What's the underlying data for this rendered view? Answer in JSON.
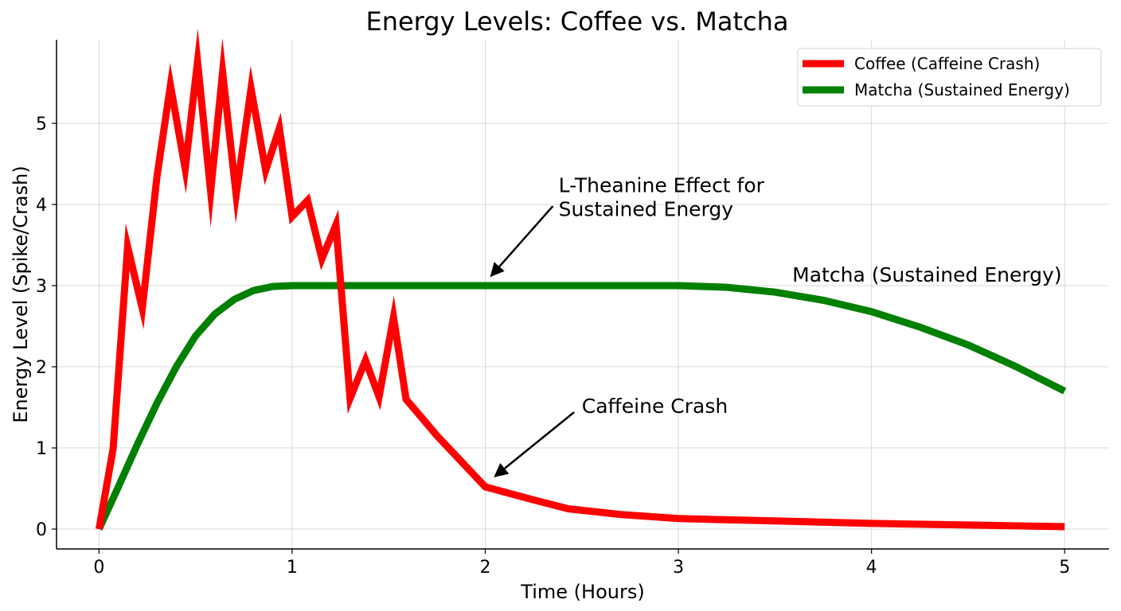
{
  "chart_data": {
    "type": "line",
    "title": "Energy Levels: Coffee vs. Matcha",
    "xlabel": "Time (Hours)",
    "ylabel": "Energy Level (Spike/Crash)",
    "xlim": [
      -0.22,
      5.23
    ],
    "ylim": [
      -0.245,
      6.03
    ],
    "xticks": [
      0,
      1,
      2,
      3,
      4,
      5
    ],
    "yticks": [
      0,
      1,
      2,
      3,
      4,
      5
    ],
    "grid": true,
    "legend_placement": "top-right",
    "series": [
      {
        "name": "Coffee (Caffeine Crash)",
        "color": "#ff0000",
        "x": [
          0,
          0.073,
          0.148,
          0.224,
          0.3,
          0.37,
          0.446,
          0.51,
          0.578,
          0.64,
          0.71,
          0.787,
          0.863,
          0.934,
          1.0,
          1.08,
          1.154,
          1.227,
          1.3,
          1.38,
          1.45,
          1.525,
          1.59,
          1.75,
          2.0,
          2.25,
          2.43,
          2.7,
          3.0,
          3.5,
          4.0,
          4.5,
          5.0
        ],
        "y": [
          0,
          0.99,
          3.48,
          2.72,
          4.34,
          5.47,
          4.44,
          5.76,
          4.16,
          5.63,
          4.12,
          5.43,
          4.42,
          4.94,
          3.85,
          4.05,
          3.33,
          3.75,
          1.61,
          2.08,
          1.63,
          2.61,
          1.6,
          1.15,
          0.52,
          0.36,
          0.25,
          0.18,
          0.13,
          0.1,
          0.07,
          0.05,
          0.03
        ]
      },
      {
        "name": "Matcha (Sustained Energy)",
        "color": "#008000",
        "x": [
          0,
          0.1,
          0.2,
          0.3,
          0.4,
          0.5,
          0.6,
          0.7,
          0.8,
          0.9,
          1.0,
          2.0,
          3.0,
          3.25,
          3.5,
          3.75,
          4.0,
          4.25,
          4.5,
          4.75,
          5.0
        ],
        "y": [
          0,
          0.52,
          1.05,
          1.55,
          2.0,
          2.38,
          2.65,
          2.83,
          2.94,
          2.99,
          3.0,
          3.0,
          3.0,
          2.98,
          2.92,
          2.82,
          2.68,
          2.49,
          2.27,
          2.0,
          1.7
        ]
      }
    ],
    "annotations": [
      {
        "text_lines": [
          "L-Theanine Effect for",
          "Sustained Energy"
        ],
        "text_at": [
          2.38,
          4.15
        ],
        "arrow_from": [
          2.35,
          3.98
        ],
        "arrow_to": [
          2.03,
          3.12
        ]
      },
      {
        "text_lines": [
          "Caffeine Crash"
        ],
        "text_at": [
          2.5,
          1.43
        ],
        "arrow_from": [
          2.46,
          1.44
        ],
        "arrow_to": [
          2.05,
          0.65
        ]
      },
      {
        "text_lines": [
          "Matcha (Sustained Energy)"
        ],
        "text_at": [
          3.59,
          3.05
        ]
      }
    ]
  }
}
